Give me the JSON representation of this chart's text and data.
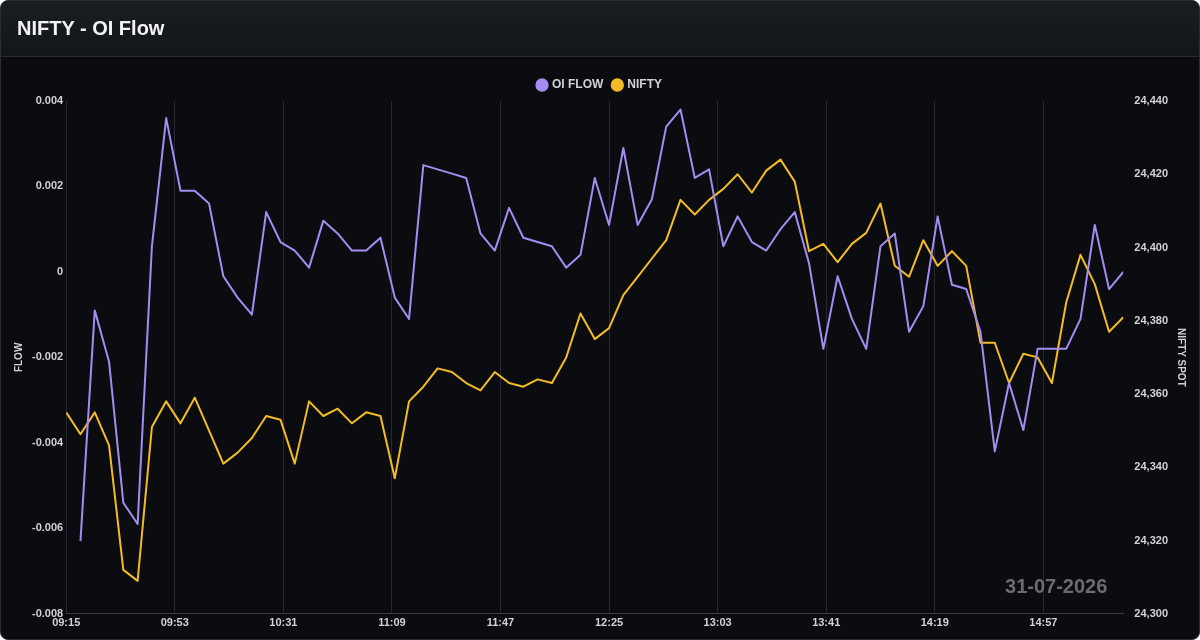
{
  "chart_data": {
    "type": "line",
    "title": "NIFTY - OI Flow",
    "x": [
      9.25,
      9.3333,
      9.4167,
      9.5,
      9.5833,
      9.6667,
      9.75,
      9.8333,
      9.9167,
      10.0,
      10.0833,
      10.1667,
      10.25,
      10.3333,
      10.4167,
      10.5,
      10.5833,
      10.6667,
      10.75,
      10.8333,
      10.9167,
      11.0,
      11.0833,
      11.1667,
      11.25,
      11.3333,
      11.4167,
      11.5,
      11.5833,
      11.6667,
      11.75,
      11.8333,
      11.9167,
      12.0,
      12.0833,
      12.1667,
      12.25,
      12.3333,
      12.4167,
      12.5,
      12.5833,
      12.6667,
      12.75,
      12.8333,
      12.9167,
      13.0,
      13.0833,
      13.1667,
      13.25,
      13.3333,
      13.4167,
      13.5,
      13.5833,
      13.6667,
      13.75,
      13.8333,
      13.9167,
      14.0,
      14.0833,
      14.1667,
      14.25,
      14.3333,
      14.4167,
      14.5,
      14.5833,
      14.6667,
      14.75,
      14.8333,
      14.9167,
      15.0,
      15.0833,
      15.1667,
      15.25,
      15.3333,
      15.4167
    ],
    "series": [
      {
        "name": "OI FLOW",
        "color": "#a58cf2",
        "axis": "y",
        "values": [
          null,
          -0.0063,
          -0.0009,
          -0.0021,
          -0.0054,
          -0.0059,
          0.0006,
          0.0036,
          0.0019,
          0.0019,
          0.0016,
          -0.0001,
          -0.0006,
          -0.001,
          0.0014,
          0.0007,
          0.0005,
          0.0001,
          0.0012,
          0.0009,
          0.0005,
          0.0005,
          0.0008,
          -0.0006,
          -0.0011,
          0.0025,
          0.0024,
          0.0023,
          0.0022,
          0.0009,
          0.0005,
          0.0015,
          0.0008,
          0.0007,
          0.0006,
          0.0001,
          0.0004,
          0.0022,
          0.0011,
          0.0029,
          0.0011,
          0.0017,
          0.0034,
          0.0038,
          0.0022,
          0.0024,
          0.0006,
          0.0013,
          0.0007,
          0.0005,
          0.001,
          0.0014,
          0.0002,
          -0.0018,
          -0.0001,
          -0.0011,
          -0.0018,
          0.0006,
          0.0009,
          -0.0014,
          -0.0008,
          0.0013,
          -0.0003,
          -0.0004,
          -0.0014,
          -0.0042,
          -0.0026,
          -0.0037,
          -0.0018,
          -0.0018,
          -0.0018,
          -0.0011,
          0.0011,
          -0.0004,
          0.0
        ]
      },
      {
        "name": "NIFTY",
        "color": "#f5bb24",
        "axis": "y2",
        "values": [
          24355,
          24349,
          24355,
          24346,
          24312,
          24309,
          24351,
          24358,
          24352,
          24359,
          24350,
          24341,
          24344,
          24348,
          24354,
          24353,
          24341,
          24358,
          24354,
          24356,
          24352,
          24355,
          24354,
          24337,
          24358,
          24362,
          24367,
          24366,
          24363,
          24361,
          24366,
          24363,
          24362,
          24364,
          24363,
          24370,
          24382,
          24375,
          24378,
          24387,
          24392,
          24397,
          24402,
          24413,
          24409,
          24413,
          24416,
          24420,
          24415,
          24421,
          24424,
          24418,
          24399,
          24401,
          24396,
          24401,
          24404,
          24412,
          24395,
          24392,
          24402,
          24395,
          24399,
          24395,
          24374,
          24374,
          24363,
          24371,
          24370,
          24363,
          24385,
          24398,
          24390,
          24377,
          24381
        ]
      }
    ],
    "xlim": [
      9.25,
      15.4167
    ],
    "xticks": [
      {
        "value": 9.25,
        "label": "09:15"
      },
      {
        "value": 9.8833,
        "label": "09:53"
      },
      {
        "value": 10.5167,
        "label": "10:31"
      },
      {
        "value": 11.15,
        "label": "11:09"
      },
      {
        "value": 11.7833,
        "label": "11:47"
      },
      {
        "value": 12.4167,
        "label": "12:25"
      },
      {
        "value": 13.05,
        "label": "13:03"
      },
      {
        "value": 13.6833,
        "label": "13:41"
      },
      {
        "value": 14.3167,
        "label": "14:19"
      },
      {
        "value": 14.95,
        "label": "14:57"
      }
    ],
    "ylabel": "FLOW",
    "y2label": "NIFTY SPOT",
    "ylim": [
      -0.008,
      0.004
    ],
    "yticks": [
      {
        "value": -0.008,
        "label": "-0.008"
      },
      {
        "value": -0.006,
        "label": "-0.006"
      },
      {
        "value": -0.004,
        "label": "-0.004"
      },
      {
        "value": -0.002,
        "label": "-0.002"
      },
      {
        "value": 0,
        "label": "0"
      },
      {
        "value": 0.002,
        "label": "0.002"
      },
      {
        "value": 0.004,
        "label": "0.004"
      }
    ],
    "y2lim": [
      24300,
      24440
    ],
    "y2ticks": [
      {
        "value": 24300,
        "label": "24,300"
      },
      {
        "value": 24320,
        "label": "24,320"
      },
      {
        "value": 24340,
        "label": "24,340"
      },
      {
        "value": 24360,
        "label": "24,360"
      },
      {
        "value": 24380,
        "label": "24,380"
      },
      {
        "value": 24400,
        "label": "24,400"
      },
      {
        "value": 24420,
        "label": "24,420"
      },
      {
        "value": 24440,
        "label": "24,440"
      }
    ],
    "grid": "x",
    "legend": "top",
    "marker": "none",
    "line_style": "solid",
    "annotations": [
      "31-07-2026"
    ]
  }
}
